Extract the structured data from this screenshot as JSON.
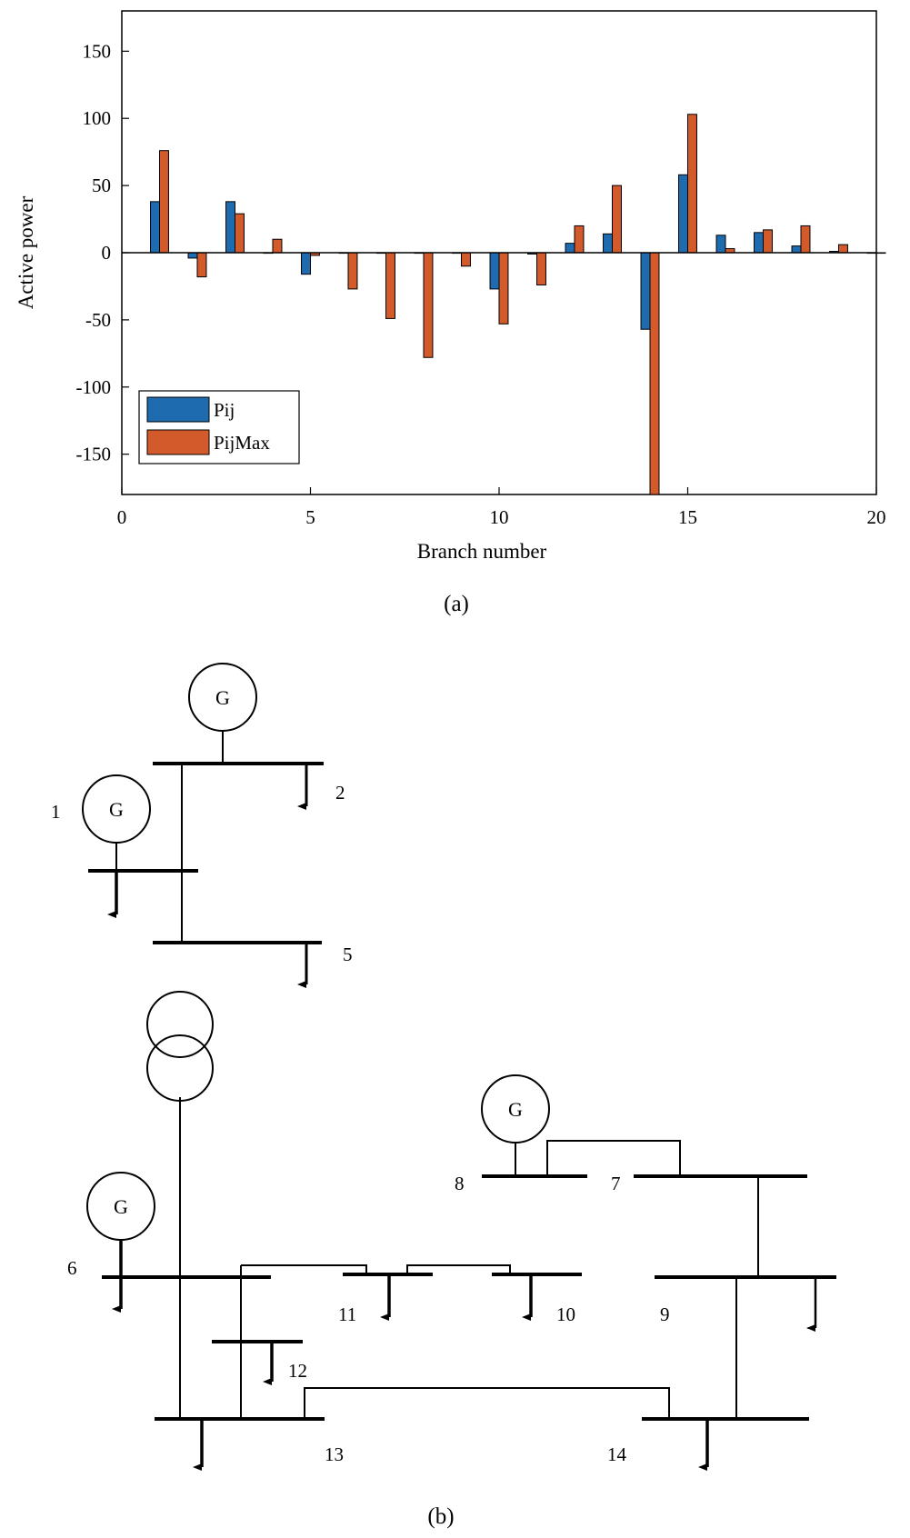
{
  "colors": {
    "pij": "#1f6bb0",
    "pijmax": "#d35a2a",
    "stroke": "#000000"
  },
  "chart_data": {
    "type": "bar",
    "title": "",
    "xlabel": "Branch number",
    "ylabel": "Active power",
    "xlim": [
      0,
      20
    ],
    "ylim": [
      -180,
      180
    ],
    "xticks": [
      0,
      5,
      10,
      15,
      20
    ],
    "yticks": [
      -150,
      -100,
      -50,
      0,
      50,
      100,
      150
    ],
    "grid": false,
    "legend_position": "bottom-left",
    "categories": [
      1,
      2,
      3,
      4,
      5,
      6,
      7,
      8,
      9,
      10,
      11,
      12,
      13,
      14,
      15,
      16,
      17,
      18,
      19,
      20
    ],
    "series": [
      {
        "name": "Pij",
        "values": [
          38,
          -4,
          38,
          0,
          -16,
          0,
          0,
          0,
          0,
          -27,
          -1,
          7,
          14,
          -57,
          58,
          13,
          15,
          5,
          1,
          0
        ]
      },
      {
        "name": "PijMax",
        "values": [
          76,
          -18,
          29,
          10,
          -2,
          -27,
          -49,
          -78,
          -10,
          -53,
          -24,
          20,
          50,
          -180,
          103,
          3,
          17,
          20,
          6,
          0
        ]
      }
    ],
    "caption": "(a)"
  },
  "diagram": {
    "caption": "(b)",
    "generator_label": "G",
    "bus_labels": {
      "b1": "1",
      "b2": "2",
      "b5": "5",
      "b6": "6",
      "b7": "7",
      "b8": "8",
      "b9": "9",
      "b10": "10",
      "b11": "11",
      "b12": "12",
      "b13": "13",
      "b14": "14"
    }
  }
}
